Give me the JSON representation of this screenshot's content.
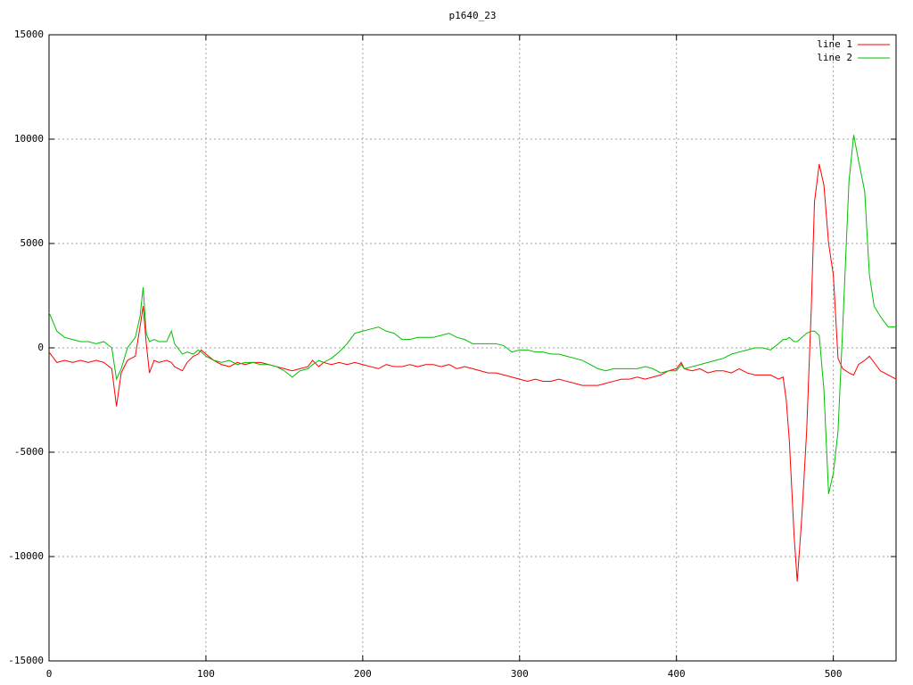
{
  "chart_data": {
    "type": "line",
    "title": "p1640_23",
    "x": [
      0,
      5,
      10,
      15,
      20,
      25,
      30,
      35,
      40,
      43,
      46,
      50,
      55,
      58,
      60,
      62,
      64,
      67,
      70,
      75,
      78,
      80,
      85,
      88,
      92,
      95,
      97,
      100,
      105,
      110,
      115,
      120,
      125,
      130,
      135,
      140,
      145,
      150,
      155,
      160,
      165,
      168,
      172,
      175,
      180,
      185,
      190,
      195,
      200,
      205,
      210,
      215,
      220,
      225,
      230,
      235,
      240,
      245,
      250,
      255,
      260,
      265,
      270,
      275,
      280,
      285,
      290,
      295,
      300,
      305,
      310,
      315,
      320,
      325,
      330,
      335,
      340,
      345,
      350,
      355,
      360,
      365,
      370,
      375,
      380,
      385,
      390,
      395,
      400,
      403,
      405,
      410,
      415,
      420,
      425,
      430,
      435,
      440,
      445,
      450,
      455,
      460,
      465,
      468,
      470,
      472,
      475,
      477,
      480,
      483,
      486,
      488,
      491,
      494,
      497,
      500,
      503,
      506,
      510,
      513,
      516,
      520,
      523,
      526,
      530,
      535,
      540
    ],
    "series": [
      {
        "name": "line 1",
        "color": "#ff0000",
        "values": [
          -200,
          -700,
          -600,
          -700,
          -600,
          -700,
          -600,
          -700,
          -1000,
          -2800,
          -1200,
          -600,
          -400,
          1000,
          2000,
          200,
          -1200,
          -600,
          -700,
          -600,
          -700,
          -900,
          -1100,
          -700,
          -400,
          -300,
          -100,
          -300,
          -600,
          -800,
          -900,
          -700,
          -800,
          -700,
          -700,
          -800,
          -900,
          -1000,
          -1100,
          -1000,
          -900,
          -600,
          -900,
          -700,
          -800,
          -700,
          -800,
          -700,
          -800,
          -900,
          -1000,
          -800,
          -900,
          -900,
          -800,
          -900,
          -800,
          -800,
          -900,
          -800,
          -1000,
          -900,
          -1000,
          -1100,
          -1200,
          -1200,
          -1300,
          -1400,
          -1500,
          -1600,
          -1500,
          -1600,
          -1600,
          -1500,
          -1600,
          -1700,
          -1800,
          -1800,
          -1800,
          -1700,
          -1600,
          -1500,
          -1500,
          -1400,
          -1500,
          -1400,
          -1300,
          -1100,
          -1000,
          -700,
          -1000,
          -1100,
          -1000,
          -1200,
          -1100,
          -1100,
          -1200,
          -1000,
          -1200,
          -1300,
          -1300,
          -1300,
          -1500,
          -1400,
          -2500,
          -4500,
          -9000,
          -11200,
          -8000,
          -4000,
          2000,
          7000,
          8800,
          7800,
          5000,
          3500,
          -500,
          -1000,
          -1200,
          -1300,
          -800,
          -600,
          -400,
          -700,
          -1100,
          -1300,
          -1500
        ]
      },
      {
        "name": "line 2",
        "color": "#00c000",
        "values": [
          1700,
          800,
          500,
          400,
          300,
          300,
          200,
          300,
          0,
          -1500,
          -1000,
          0,
          500,
          1500,
          2900,
          700,
          300,
          400,
          300,
          300,
          800,
          200,
          -300,
          -200,
          -300,
          -100,
          -200,
          -400,
          -600,
          -700,
          -600,
          -800,
          -700,
          -700,
          -800,
          -800,
          -900,
          -1100,
          -1400,
          -1100,
          -1000,
          -800,
          -600,
          -700,
          -500,
          -200,
          200,
          700,
          800,
          900,
          1000,
          800,
          700,
          400,
          400,
          500,
          500,
          500,
          600,
          700,
          500,
          400,
          200,
          200,
          200,
          200,
          100,
          -200,
          -100,
          -100,
          -200,
          -200,
          -300,
          -300,
          -400,
          -500,
          -600,
          -800,
          -1000,
          -1100,
          -1000,
          -1000,
          -1000,
          -1000,
          -900,
          -1000,
          -1200,
          -1100,
          -1100,
          -800,
          -1000,
          -900,
          -800,
          -700,
          -600,
          -500,
          -300,
          -200,
          -100,
          0,
          0,
          -100,
          200,
          400,
          400,
          500,
          300,
          300,
          500,
          700,
          800,
          800,
          600,
          -2000,
          -7000,
          -6000,
          -4000,
          1000,
          8000,
          10200,
          9000,
          7500,
          3500,
          2000,
          1500,
          1000,
          1000
        ]
      }
    ],
    "xlim": [
      0,
      540
    ],
    "ylim": [
      -15000,
      15000
    ],
    "xticks": [
      0,
      100,
      200,
      300,
      400,
      500
    ],
    "yticks": [
      -15000,
      -10000,
      -5000,
      0,
      5000,
      10000,
      15000
    ],
    "grid": true,
    "legend": "top-right"
  }
}
